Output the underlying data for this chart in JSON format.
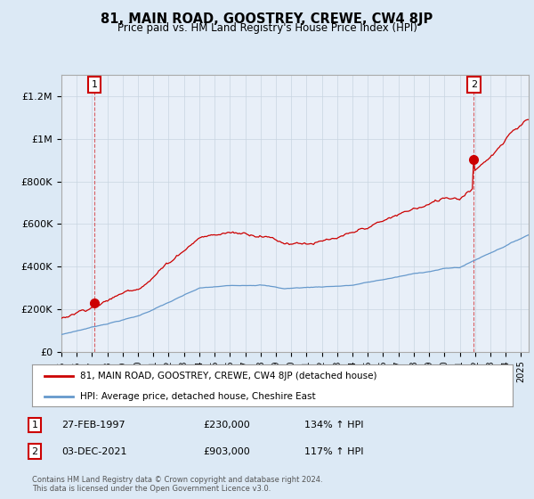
{
  "title": "81, MAIN ROAD, GOOSTREY, CREWE, CW4 8JP",
  "subtitle": "Price paid vs. HM Land Registry's House Price Index (HPI)",
  "ylim": [
    0,
    1300000
  ],
  "xlim_start": 1995.0,
  "xlim_end": 2025.5,
  "sale1_date": 1997.15,
  "sale1_price": 230000,
  "sale2_date": 2021.92,
  "sale2_price": 903000,
  "sale_color": "#cc0000",
  "hpi_color": "#6699cc",
  "background_color": "#dce9f5",
  "plot_bg_color": "#e8eff8",
  "grid_color": "#c8d4e0",
  "legend_label_red": "81, MAIN ROAD, GOOSTREY, CREWE, CW4 8JP (detached house)",
  "legend_label_blue": "HPI: Average price, detached house, Cheshire East",
  "footer_line1": "Contains HM Land Registry data © Crown copyright and database right 2024.",
  "footer_line2": "This data is licensed under the Open Government Licence v3.0.",
  "table_rows": [
    {
      "num": "1",
      "date": "27-FEB-1997",
      "price": "£230,000",
      "hpi": "134% ↑ HPI"
    },
    {
      "num": "2",
      "date": "03-DEC-2021",
      "price": "£903,000",
      "hpi": "117% ↑ HPI"
    }
  ]
}
